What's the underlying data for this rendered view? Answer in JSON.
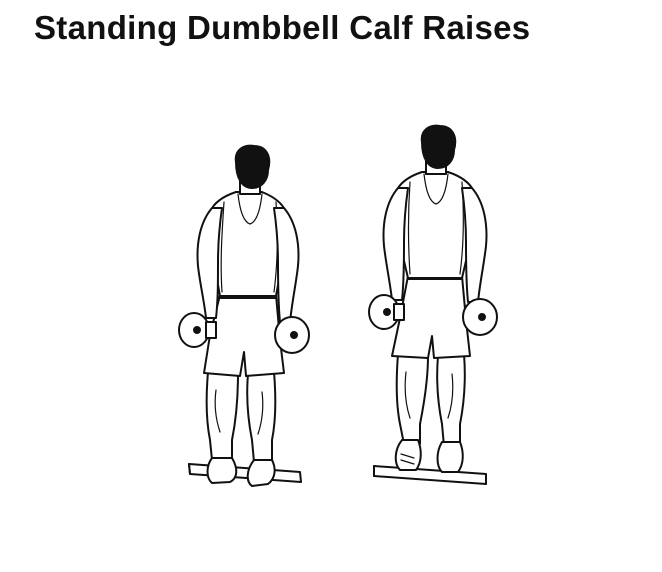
{
  "title": "Standing Dumbbell Calf Raises",
  "colors": {
    "background": "#ffffff",
    "ink": "#111111"
  },
  "figures": [
    {
      "name": "start-position"
    },
    {
      "name": "raised-position"
    }
  ]
}
